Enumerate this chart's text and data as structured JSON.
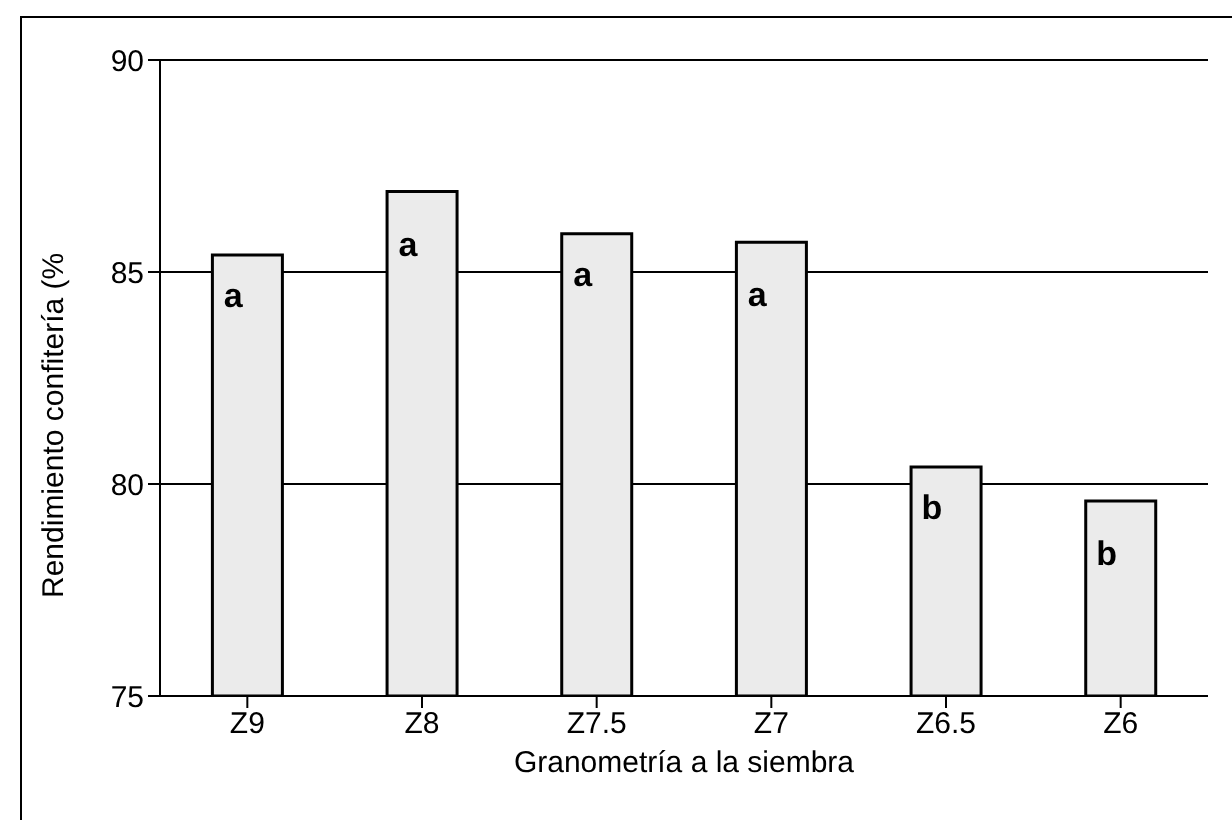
{
  "chart_data": {
    "type": "bar",
    "xlabel": "Granometría a la siembra",
    "ylabel": "Rendimiento confitería (%",
    "categories": [
      "Z9",
      "Z8",
      "Z7.5",
      "Z7",
      "Z6.5",
      "Z6"
    ],
    "values": [
      85.4,
      86.9,
      85.9,
      85.7,
      80.4,
      79.6
    ],
    "color": "#ebebeb",
    "ylim": [
      75,
      90
    ],
    "yticks": [
      75,
      80,
      85,
      90
    ],
    "grid": "y",
    "legend": false,
    "annotations": [
      "a",
      "a",
      "a",
      "a",
      "b",
      "b"
    ]
  }
}
